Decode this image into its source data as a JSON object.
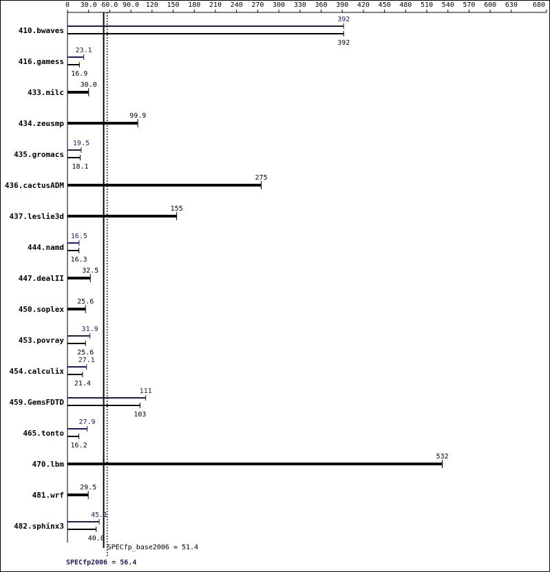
{
  "chart_data": {
    "type": "bar",
    "orientation": "horizontal",
    "categories": [
      "410.bwaves",
      "416.gamess",
      "433.milc",
      "434.zeusmp",
      "435.gromacs",
      "436.cactusADM",
      "437.leslie3d",
      "444.namd",
      "447.dealII",
      "450.soplex",
      "453.povray",
      "454.calculix",
      "459.GemsFDTD",
      "465.tonto",
      "470.lbm",
      "481.wrf",
      "482.sphinx3"
    ],
    "series": [
      {
        "name": "SPECfp2006",
        "color": "#191970",
        "values": [
          392,
          23.1,
          null,
          null,
          19.5,
          null,
          null,
          16.5,
          null,
          null,
          31.9,
          27.1,
          111,
          27.9,
          null,
          null,
          45.1
        ]
      },
      {
        "name": "SPECfp_base2006",
        "color": "#000000",
        "values": [
          392,
          16.9,
          30,
          99.9,
          18.1,
          275,
          155,
          16.3,
          32.5,
          25.6,
          25.6,
          21.4,
          103,
          16.2,
          532,
          29.5,
          40.8
        ],
        "value_labels": [
          "392",
          "16.9",
          "30.0",
          "99.9",
          "18.1",
          "275",
          "155",
          "16.3",
          "32.5",
          "25.6",
          "25.6",
          "21.4",
          "103",
          "16.2",
          "532",
          "29.5",
          "40.8"
        ]
      }
    ],
    "xlim": [
      0,
      680
    ],
    "xticks": [
      0,
      {
        "value": 30,
        "label": "30.0"
      },
      {
        "value": 60,
        "label": "60.0"
      },
      {
        "value": 90,
        "label": "90.0"
      },
      120,
      150,
      180,
      210,
      240,
      270,
      300,
      330,
      360,
      390,
      420,
      450,
      480,
      510,
      540,
      570,
      600,
      630,
      680
    ],
    "summary": [
      {
        "text": "SPECfp_base2006 = 51.4",
        "value": 51.4,
        "color": "#000000",
        "style": "solid"
      },
      {
        "text": "SPECfp2006 = 56.4",
        "value": 56.4,
        "color": "#191970",
        "style": "dotted"
      }
    ]
  }
}
